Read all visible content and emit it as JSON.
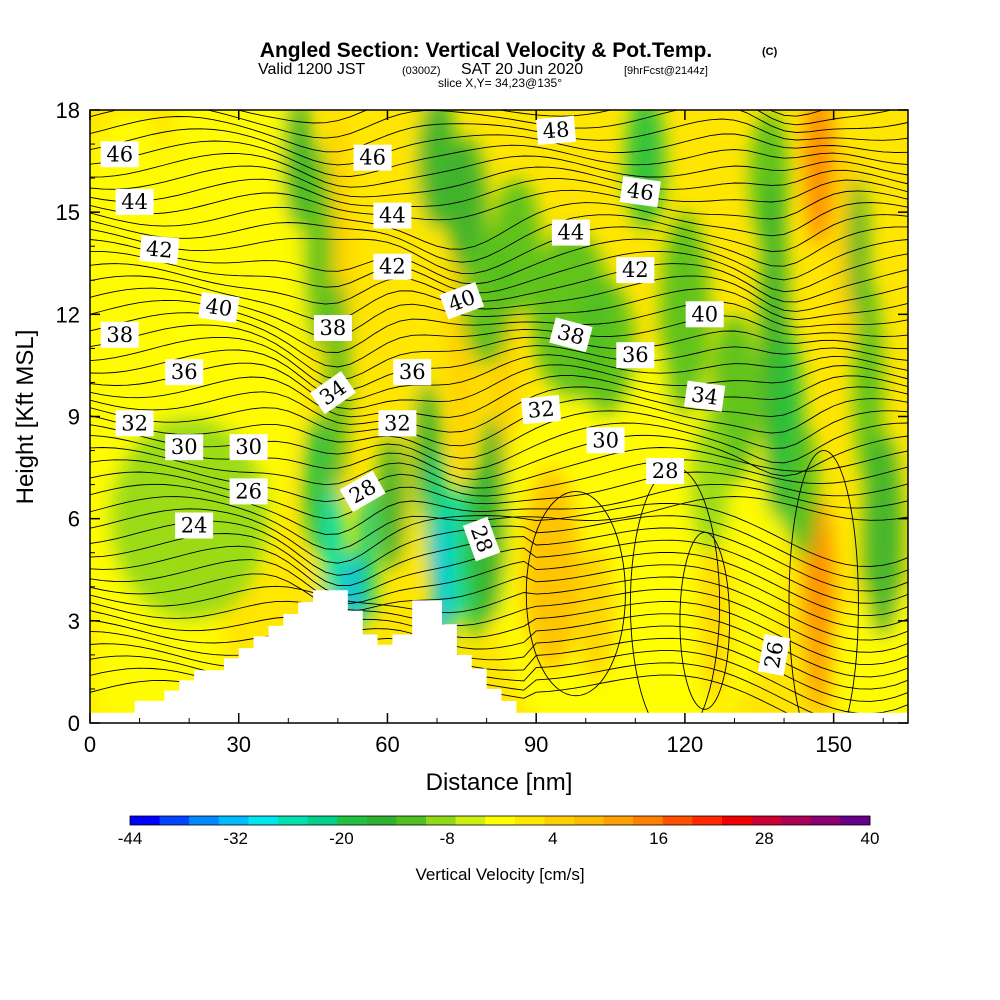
{
  "header": {
    "title_main": "Angled Section: Vertical Velocity & Pot.Temp.",
    "title_mark": "(C)",
    "valid_prefix": "Valid 1200 JST",
    "valid_utc": "(0300Z)",
    "valid_date": "SAT 20 Jun 2020",
    "forecast_tag": "[9hrFcst@2144z]",
    "slice_info": "slice X,Y= 34,23@135°"
  },
  "chart_data": {
    "type": "heatmap",
    "xlabel": "Distance [nm]",
    "ylabel": "Height [Kft MSL]",
    "xlim": [
      0,
      165
    ],
    "ylim": [
      0,
      18
    ],
    "x_ticks": [
      "0",
      "30",
      "60",
      "90",
      "120",
      "150"
    ],
    "y_ticks": [
      "0",
      "3",
      "6",
      "9",
      "12",
      "15",
      "18"
    ],
    "colorbar": {
      "label": "Vertical Velocity [cm/s]",
      "tick_labels": [
        "-44",
        "-32",
        "-20",
        "-8",
        "4",
        "16",
        "28",
        "40"
      ],
      "min": -44,
      "max": 40,
      "step": 4,
      "colors": [
        "#0000ff",
        "#0044ff",
        "#0088ff",
        "#00bbff",
        "#00e5ee",
        "#00e0b0",
        "#00d088",
        "#20c040",
        "#30b030",
        "#50c020",
        "#90d818",
        "#ccee10",
        "#ffff00",
        "#ffe800",
        "#ffd000",
        "#ffbb00",
        "#ffa000",
        "#ff8000",
        "#ff5000",
        "#ff2800",
        "#ee0000",
        "#cc0030",
        "#aa0055",
        "#8a0070",
        "#660088"
      ]
    },
    "theta_contour_labels": [
      {
        "text": "46",
        "x": 6,
        "y": 16.7,
        "rot": 0
      },
      {
        "text": "44",
        "x": 9,
        "y": 15.3,
        "rot": 0
      },
      {
        "text": "42",
        "x": 14,
        "y": 13.9,
        "rot": 5
      },
      {
        "text": "40",
        "x": 26,
        "y": 12.2,
        "rot": 8
      },
      {
        "text": "38",
        "x": 6,
        "y": 11.4,
        "rot": 0
      },
      {
        "text": "36",
        "x": 19,
        "y": 10.3,
        "rot": 0
      },
      {
        "text": "32",
        "x": 9,
        "y": 8.8,
        "rot": 0
      },
      {
        "text": "30",
        "x": 19,
        "y": 8.1,
        "rot": 0
      },
      {
        "text": "30",
        "x": 32,
        "y": 8.1,
        "rot": 0
      },
      {
        "text": "26",
        "x": 32,
        "y": 6.8,
        "rot": 0
      },
      {
        "text": "24",
        "x": 21,
        "y": 5.8,
        "rot": 0
      },
      {
        "text": "46",
        "x": 57,
        "y": 16.6,
        "rot": 0
      },
      {
        "text": "44",
        "x": 61,
        "y": 14.9,
        "rot": 0
      },
      {
        "text": "42",
        "x": 61,
        "y": 13.4,
        "rot": 0
      },
      {
        "text": "38",
        "x": 49,
        "y": 11.6,
        "rot": 0
      },
      {
        "text": "34",
        "x": 49,
        "y": 9.7,
        "rot": -35
      },
      {
        "text": "36",
        "x": 65,
        "y": 10.3,
        "rot": 0
      },
      {
        "text": "32",
        "x": 62,
        "y": 8.8,
        "rot": 0
      },
      {
        "text": "28",
        "x": 55,
        "y": 6.8,
        "rot": -30
      },
      {
        "text": "40",
        "x": 75,
        "y": 12.4,
        "rot": -20
      },
      {
        "text": "28",
        "x": 79,
        "y": 5.4,
        "rot": 70
      },
      {
        "text": "48",
        "x": 94,
        "y": 17.4,
        "rot": -5
      },
      {
        "text": "44",
        "x": 97,
        "y": 14.4,
        "rot": 0
      },
      {
        "text": "38",
        "x": 97,
        "y": 11.4,
        "rot": 15
      },
      {
        "text": "32",
        "x": 91,
        "y": 9.2,
        "rot": -5
      },
      {
        "text": "30",
        "x": 104,
        "y": 8.3,
        "rot": 0
      },
      {
        "text": "46",
        "x": 111,
        "y": 15.6,
        "rot": 8
      },
      {
        "text": "42",
        "x": 110,
        "y": 13.3,
        "rot": 0
      },
      {
        "text": "36",
        "x": 110,
        "y": 10.8,
        "rot": 0
      },
      {
        "text": "40",
        "x": 124,
        "y": 12.0,
        "rot": 0
      },
      {
        "text": "34",
        "x": 124,
        "y": 9.6,
        "rot": 8
      },
      {
        "text": "28",
        "x": 116,
        "y": 7.4,
        "rot": 0
      },
      {
        "text": "26",
        "x": 138,
        "y": 2.0,
        "rot": -80
      }
    ],
    "terrain_kft": [
      [
        0,
        0.3
      ],
      [
        9,
        0.3
      ],
      [
        9,
        0.65
      ],
      [
        15,
        0.65
      ],
      [
        15,
        0.95
      ],
      [
        18,
        0.95
      ],
      [
        18,
        1.25
      ],
      [
        21,
        1.25
      ],
      [
        21,
        1.55
      ],
      [
        27,
        1.55
      ],
      [
        27,
        1.9
      ],
      [
        30,
        1.9
      ],
      [
        30,
        2.2
      ],
      [
        33,
        2.2
      ],
      [
        33,
        2.55
      ],
      [
        36,
        2.55
      ],
      [
        36,
        2.85
      ],
      [
        39,
        2.85
      ],
      [
        39,
        3.2
      ],
      [
        42,
        3.2
      ],
      [
        42,
        3.55
      ],
      [
        45,
        3.55
      ],
      [
        45,
        3.9
      ],
      [
        52,
        3.9
      ],
      [
        52,
        3.3
      ],
      [
        55,
        3.3
      ],
      [
        55,
        2.6
      ],
      [
        58,
        2.6
      ],
      [
        58,
        2.3
      ],
      [
        61,
        2.3
      ],
      [
        61,
        2.6
      ],
      [
        65,
        2.6
      ],
      [
        65,
        3.6
      ],
      [
        71,
        3.6
      ],
      [
        71,
        2.9
      ],
      [
        74,
        2.9
      ],
      [
        74,
        2.0
      ],
      [
        77,
        2.0
      ],
      [
        77,
        1.6
      ],
      [
        80,
        1.6
      ],
      [
        80,
        1.0
      ],
      [
        83,
        1.0
      ],
      [
        83,
        0.65
      ],
      [
        86,
        0.65
      ],
      [
        86,
        0.3
      ],
      [
        165,
        0.3
      ]
    ]
  }
}
